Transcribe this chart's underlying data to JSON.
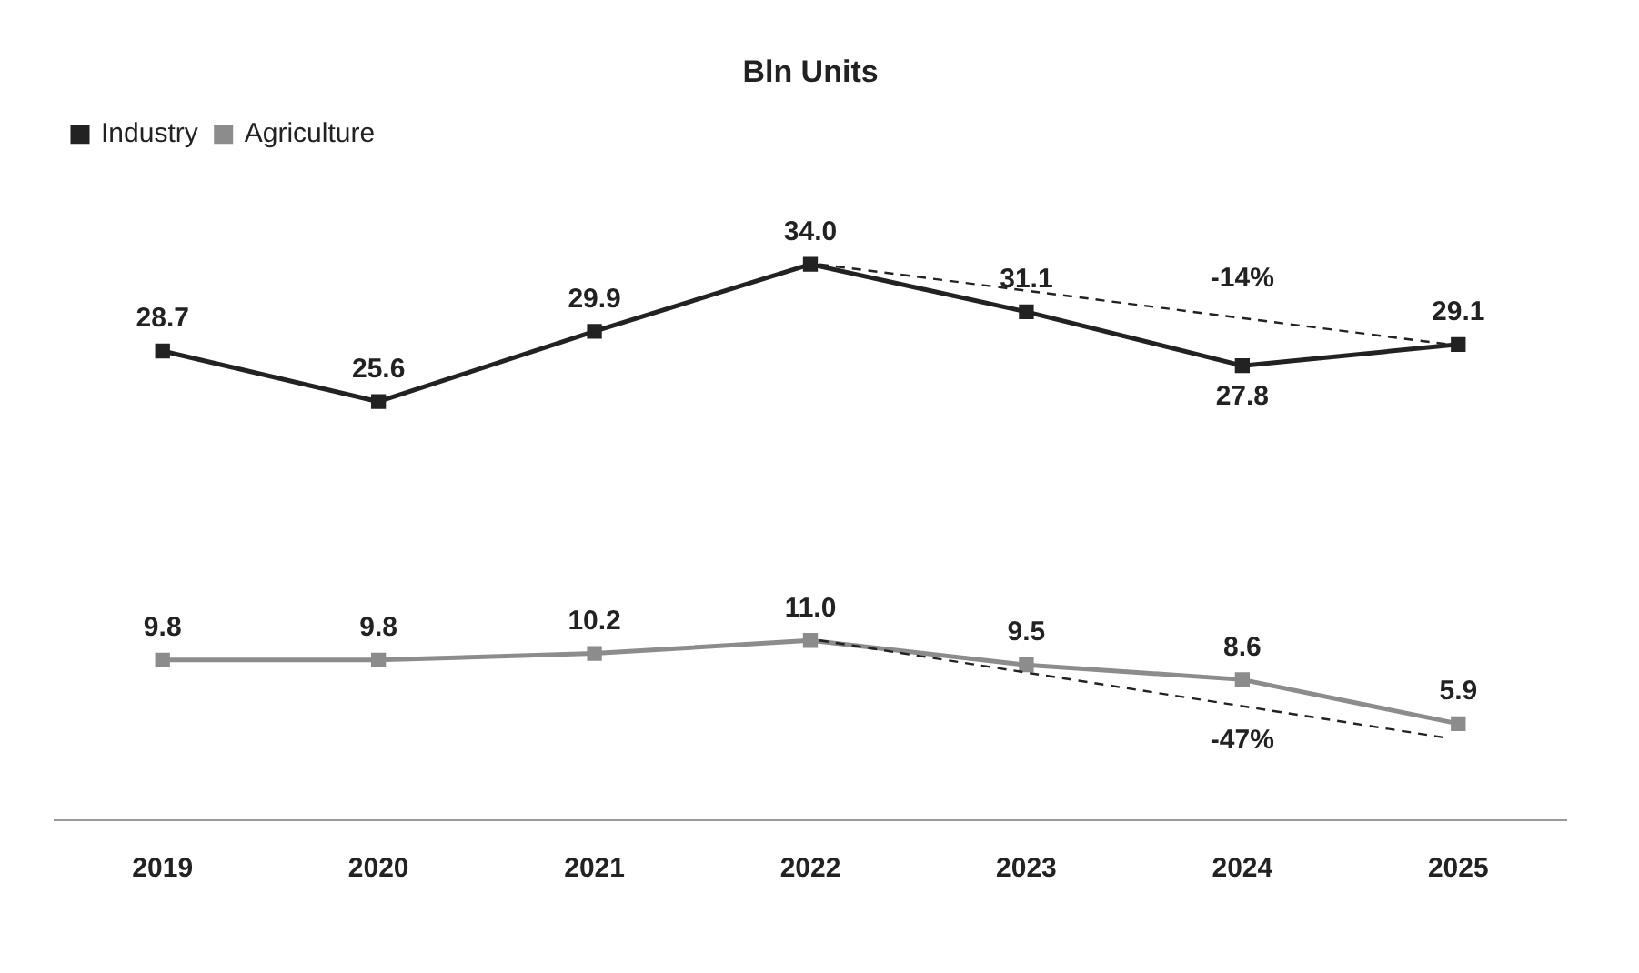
{
  "chart_data": {
    "type": "line",
    "title": "Bln Units",
    "categories": [
      "2019",
      "2020",
      "2021",
      "2022",
      "2023",
      "2024",
      "2025"
    ],
    "series": [
      {
        "name": "Industry",
        "color": "#222222",
        "values": [
          28.7,
          25.6,
          29.9,
          34.0,
          31.1,
          27.8,
          29.1
        ],
        "value_labels": [
          "28.7",
          "25.6",
          "29.9",
          "34.0",
          "31.1",
          "27.8",
          "29.1"
        ]
      },
      {
        "name": "Agriculture",
        "color": "#8c8c8c",
        "values": [
          9.8,
          9.8,
          10.2,
          11.0,
          9.5,
          8.6,
          5.9
        ],
        "value_labels": [
          "9.8",
          "9.8",
          "10.2",
          "11.0",
          "9.5",
          "8.6",
          "5.9"
        ]
      }
    ],
    "annotations": [
      "-14%",
      "-47%"
    ],
    "grid": false,
    "legend": "top left",
    "marker": "square",
    "line_style": "solid"
  }
}
